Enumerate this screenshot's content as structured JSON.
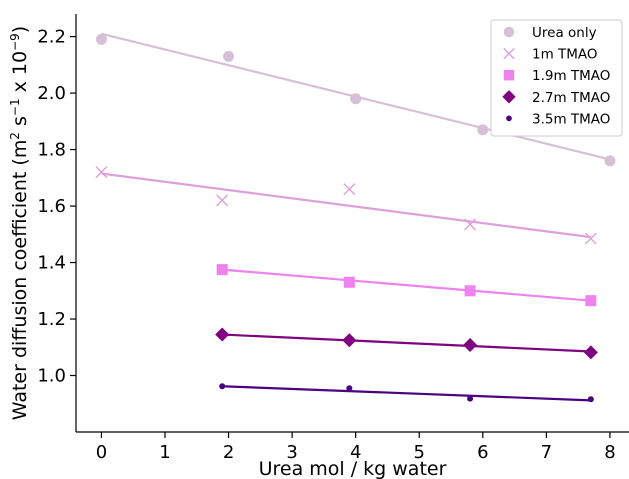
{
  "chart_data": {
    "type": "scatter",
    "xlabel": "Urea mol / kg water",
    "ylabel_main": "Water diffusion coefficient (m",
    "ylabel_sup1": "2",
    "ylabel_mid1": " s",
    "ylabel_sup2": "−1",
    "ylabel_mid2": " x 10",
    "ylabel_sup3": "−9",
    "ylabel_end": ")",
    "xlim": [
      -0.4,
      8.3
    ],
    "ylim": [
      0.8,
      2.28
    ],
    "xticks": [
      0,
      1,
      2,
      3,
      4,
      5,
      6,
      7,
      8
    ],
    "xtick_labels": [
      "0",
      "1",
      "2",
      "3",
      "4",
      "5",
      "6",
      "7",
      "8"
    ],
    "yticks": [
      1.0,
      1.2,
      1.4,
      1.6,
      1.8,
      2.0,
      2.2
    ],
    "ytick_labels": [
      "1.0",
      "1.2",
      "1.4",
      "1.6",
      "1.8",
      "2.0",
      "2.2"
    ],
    "legend_position": "top-right",
    "series": [
      {
        "name": "Urea only",
        "marker": "circle",
        "color": "#d8bfd8",
        "x": [
          0,
          2,
          4,
          6,
          8
        ],
        "y": [
          2.19,
          2.13,
          1.98,
          1.87,
          1.76
        ],
        "fit": {
          "x": [
            0,
            8
          ],
          "y": [
            2.21,
            1.765
          ]
        }
      },
      {
        "name": "1m TMAO",
        "marker": "x",
        "color": "#dda0dd",
        "x": [
          0,
          1.9,
          3.9,
          5.8,
          7.7
        ],
        "y": [
          1.72,
          1.62,
          1.66,
          1.535,
          1.485
        ],
        "fit": {
          "x": [
            0,
            7.7
          ],
          "y": [
            1.715,
            1.49
          ]
        }
      },
      {
        "name": "1.9m TMAO",
        "marker": "square",
        "color": "#ee82ee",
        "x": [
          1.9,
          3.9,
          5.8,
          7.7
        ],
        "y": [
          1.375,
          1.33,
          1.3,
          1.265
        ],
        "fit": {
          "x": [
            1.9,
            7.7
          ],
          "y": [
            1.375,
            1.265
          ]
        }
      },
      {
        "name": "2.7m TMAO",
        "marker": "diamond",
        "color": "#800080",
        "x": [
          1.9,
          3.9,
          5.8,
          7.7
        ],
        "y": [
          1.145,
          1.125,
          1.108,
          1.082
        ],
        "fit": {
          "x": [
            1.9,
            7.7
          ],
          "y": [
            1.145,
            1.085
          ]
        }
      },
      {
        "name": "3.5m TMAO",
        "marker": "dot",
        "color": "#4b0082",
        "x": [
          1.9,
          3.9,
          5.8,
          7.7
        ],
        "y": [
          0.962,
          0.955,
          0.918,
          0.916
        ],
        "fit": {
          "x": [
            1.9,
            7.7
          ],
          "y": [
            0.962,
            0.912
          ]
        }
      }
    ]
  }
}
